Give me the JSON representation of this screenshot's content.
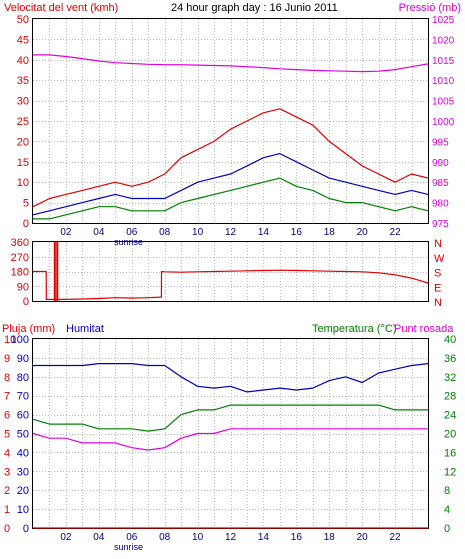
{
  "chart_data": [
    {
      "type": "line",
      "title": "24 hour graph day : 16 Junio 2011",
      "left_axis_label": "Velocitat del vent (kmh)",
      "right_axis_label": "Pressió (mb)",
      "y_left_ticks": [
        "0",
        "5",
        "10",
        "15",
        "20",
        "25",
        "30",
        "35",
        "40",
        "45",
        "50"
      ],
      "y_left_range": [
        0,
        50
      ],
      "y_right_ticks": [
        "975",
        "980",
        "985",
        "990",
        "995",
        "1000",
        "1005",
        "1010",
        "1015",
        "1020",
        "1025"
      ],
      "y_right_range": [
        975,
        1025
      ],
      "x_ticks": [
        "02",
        "04",
        "06",
        "08",
        "10",
        "12",
        "14",
        "16",
        "18",
        "20",
        "22"
      ],
      "x_extra_tick": "sunrise",
      "x_range": [
        0,
        24
      ],
      "grid": true,
      "series": [
        {
          "color": "#e000e0",
          "axis": "right",
          "x": [
            0,
            1,
            2,
            3,
            4,
            5,
            6,
            7,
            8,
            9,
            10,
            11,
            12,
            13,
            14,
            15,
            16,
            17,
            18,
            19,
            20,
            21,
            22,
            23,
            24
          ],
          "values": [
            1016.2,
            1016.2,
            1015.8,
            1015.3,
            1014.7,
            1014.3,
            1014.1,
            1013.9,
            1013.8,
            1013.8,
            1013.7,
            1013.6,
            1013.5,
            1013.3,
            1013.1,
            1012.8,
            1012.6,
            1012.4,
            1012.3,
            1012.2,
            1012.1,
            1012.2,
            1012.6,
            1013.3,
            1014.0
          ]
        },
        {
          "color": "#e00000",
          "axis": "left",
          "x": [
            0,
            1,
            2,
            3,
            4,
            5,
            6,
            7,
            8,
            9,
            10,
            11,
            12,
            13,
            14,
            15,
            16,
            17,
            18,
            19,
            20,
            21,
            22,
            23,
            24
          ],
          "values": [
            4,
            6,
            7,
            8,
            9,
            10,
            9,
            10,
            12,
            16,
            18,
            20,
            23,
            25,
            27,
            28,
            26,
            24,
            20,
            17,
            14,
            12,
            10,
            12,
            11
          ]
        },
        {
          "color": "#0000c0",
          "axis": "left",
          "x": [
            0,
            1,
            2,
            3,
            4,
            5,
            6,
            7,
            8,
            9,
            10,
            11,
            12,
            13,
            14,
            15,
            16,
            17,
            18,
            19,
            20,
            21,
            22,
            23,
            24
          ],
          "values": [
            2,
            3,
            4,
            5,
            6,
            7,
            6,
            6,
            6,
            8,
            10,
            11,
            12,
            14,
            16,
            17,
            15,
            13,
            11,
            10,
            9,
            8,
            7,
            8,
            7
          ]
        },
        {
          "color": "#008000",
          "axis": "left",
          "x": [
            0,
            1,
            2,
            3,
            4,
            5,
            6,
            7,
            8,
            9,
            10,
            11,
            12,
            13,
            14,
            15,
            16,
            17,
            18,
            19,
            20,
            21,
            22,
            23,
            24
          ],
          "values": [
            1,
            1,
            2,
            3,
            4,
            4,
            3,
            3,
            3,
            5,
            6,
            7,
            8,
            9,
            10,
            11,
            9,
            8,
            6,
            5,
            5,
            4,
            3,
            4,
            3
          ]
        }
      ]
    },
    {
      "type": "line",
      "y_ticks": [
        "360",
        "270",
        "180",
        "90",
        "0"
      ],
      "y_range": [
        0,
        360
      ],
      "compass_labels": [
        "N",
        "W",
        "S",
        "E",
        "N"
      ],
      "x_range": [
        0,
        24
      ],
      "grid": true,
      "series": [
        {
          "color": "#e00000",
          "x": [
            0,
            0.8,
            0.81,
            2,
            3,
            4,
            5,
            6,
            7,
            7.8,
            7.81,
            8,
            9,
            10,
            11,
            12,
            13,
            14,
            15,
            16,
            17,
            18,
            19,
            20,
            21,
            22,
            23,
            24
          ],
          "values": [
            180,
            180,
            10,
            10,
            12,
            15,
            20,
            18,
            20,
            24,
            180,
            178,
            176,
            178,
            180,
            182,
            184,
            186,
            188,
            186,
            184,
            182,
            180,
            178,
            172,
            160,
            140,
            110
          ]
        }
      ]
    },
    {
      "type": "line",
      "left_axis_label": "Pluja (mm)",
      "left_axis_label_2": "Humitat",
      "right_axis_label": "Temperatura (°C)",
      "right_axis_label_2": "Punt rosada",
      "y_left_outer_ticks": [
        "0",
        "1",
        "2",
        "3",
        "4",
        "5",
        "6",
        "7",
        "8",
        "9",
        "10"
      ],
      "y_left_outer_range": [
        0,
        10
      ],
      "y_left_inner_ticks": [
        "0",
        "10",
        "20",
        "30",
        "40",
        "50",
        "60",
        "70",
        "80",
        "90",
        "100"
      ],
      "y_left_inner_range": [
        0,
        100
      ],
      "y_right_ticks": [
        "0",
        "4",
        "8",
        "12",
        "16",
        "20",
        "24",
        "28",
        "32",
        "36",
        "40"
      ],
      "y_right_range": [
        0,
        40
      ],
      "x_ticks": [
        "02",
        "04",
        "06",
        "08",
        "10",
        "12",
        "14",
        "16",
        "18",
        "20",
        "22"
      ],
      "x_extra_tick": "sunrise",
      "x_range": [
        0,
        24
      ],
      "grid": true,
      "series": [
        {
          "color": "#e00000",
          "axis": "left_outer",
          "x": [
            0,
            24
          ],
          "values": [
            0,
            0
          ]
        },
        {
          "color": "#0000c0",
          "axis": "left_inner",
          "x": [
            0,
            1,
            2,
            3,
            4,
            5,
            6,
            7,
            8,
            9,
            10,
            11,
            12,
            13,
            14,
            15,
            16,
            17,
            18,
            19,
            20,
            21,
            22,
            23,
            24
          ],
          "values": [
            86,
            86,
            86,
            86,
            87,
            87,
            87,
            86,
            86,
            80,
            75,
            74,
            75,
            72,
            73,
            74,
            73,
            74,
            78,
            80,
            77,
            82,
            84,
            86,
            87
          ]
        },
        {
          "color": "#008000",
          "axis": "right",
          "x": [
            0,
            1,
            2,
            3,
            4,
            5,
            6,
            7,
            8,
            9,
            10,
            11,
            12,
            13,
            14,
            15,
            16,
            17,
            18,
            19,
            20,
            21,
            22,
            23,
            24
          ],
          "values": [
            23,
            22,
            22,
            22,
            21,
            21,
            21,
            20.5,
            21,
            24,
            25,
            25,
            26,
            26,
            26,
            26,
            26,
            26,
            26,
            26,
            26,
            26,
            25,
            25,
            25
          ]
        },
        {
          "color": "#e000e0",
          "axis": "right",
          "x": [
            0,
            1,
            2,
            3,
            4,
            5,
            6,
            7,
            8,
            9,
            10,
            11,
            12,
            13,
            14,
            15,
            16,
            17,
            18,
            19,
            20,
            21,
            22,
            23,
            24
          ],
          "values": [
            20,
            19,
            19,
            18,
            18,
            18,
            17,
            16.5,
            17,
            19,
            20,
            20,
            21,
            21,
            21,
            21,
            21,
            21,
            21,
            21,
            21,
            21,
            21,
            21,
            21
          ]
        }
      ]
    }
  ]
}
